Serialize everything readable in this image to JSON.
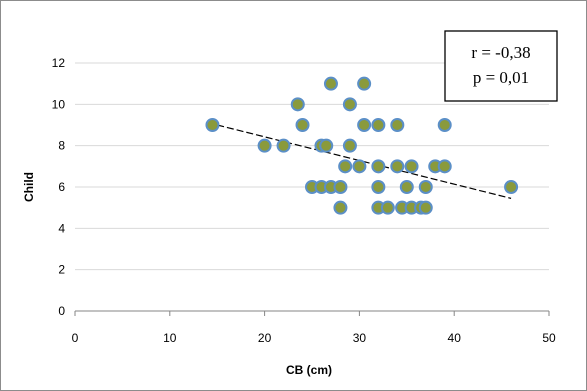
{
  "chart_data": {
    "type": "scatter",
    "title": "",
    "xlabel": "CB (cm)",
    "ylabel": "Child",
    "xlim": [
      0,
      50
    ],
    "ylim": [
      0,
      12
    ],
    "xticks": [
      0,
      10,
      20,
      30,
      40,
      50
    ],
    "yticks": [
      0,
      2,
      4,
      6,
      8,
      10,
      12
    ],
    "grid": "horizontal",
    "legend": "none",
    "marker_colors": {
      "fill": "#8a9a3c",
      "edge": "#5b8fc7"
    },
    "points": [
      {
        "x": 14.5,
        "y": 9
      },
      {
        "x": 20,
        "y": 8
      },
      {
        "x": 22,
        "y": 8
      },
      {
        "x": 23.5,
        "y": 10
      },
      {
        "x": 24,
        "y": 9
      },
      {
        "x": 25,
        "y": 6
      },
      {
        "x": 26,
        "y": 6
      },
      {
        "x": 26,
        "y": 8
      },
      {
        "x": 26.5,
        "y": 8
      },
      {
        "x": 27,
        "y": 6
      },
      {
        "x": 27,
        "y": 11
      },
      {
        "x": 28,
        "y": 5
      },
      {
        "x": 28,
        "y": 6
      },
      {
        "x": 28.5,
        "y": 7
      },
      {
        "x": 29,
        "y": 8
      },
      {
        "x": 29,
        "y": 10
      },
      {
        "x": 30,
        "y": 7
      },
      {
        "x": 30.5,
        "y": 9
      },
      {
        "x": 30.5,
        "y": 11
      },
      {
        "x": 32,
        "y": 5
      },
      {
        "x": 32,
        "y": 6
      },
      {
        "x": 32,
        "y": 7
      },
      {
        "x": 32,
        "y": 9
      },
      {
        "x": 33,
        "y": 5
      },
      {
        "x": 34,
        "y": 7
      },
      {
        "x": 34,
        "y": 9
      },
      {
        "x": 34.5,
        "y": 5
      },
      {
        "x": 35,
        "y": 6
      },
      {
        "x": 35.5,
        "y": 5
      },
      {
        "x": 35.5,
        "y": 7
      },
      {
        "x": 36.5,
        "y": 5
      },
      {
        "x": 37,
        "y": 5
      },
      {
        "x": 37,
        "y": 6
      },
      {
        "x": 38,
        "y": 7
      },
      {
        "x": 39,
        "y": 7
      },
      {
        "x": 39,
        "y": 9
      },
      {
        "x": 46,
        "y": 6
      }
    ],
    "trendline": {
      "style": "dashed",
      "color": "#000000",
      "x": [
        15,
        46
      ],
      "y": [
        9.0,
        5.45
      ]
    },
    "annotation": {
      "r_text": "r = -0,38",
      "p_text": "p = 0,01",
      "placement": "top-right"
    }
  }
}
